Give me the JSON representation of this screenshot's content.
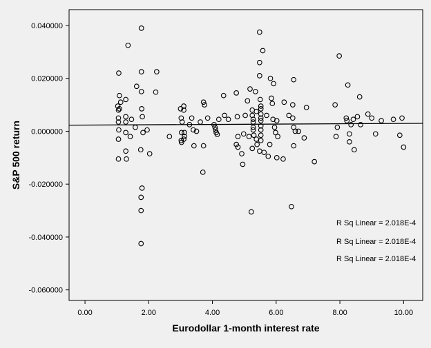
{
  "chart_data": {
    "type": "scatter",
    "title": "",
    "xlabel": "Eurodollar 1-month interest rate",
    "ylabel": "S&P 500 return",
    "xlim": [
      -0.5,
      10.6
    ],
    "ylim": [
      -0.064,
      0.046
    ],
    "x_ticks": [
      0,
      2,
      4,
      6,
      8,
      10
    ],
    "x_tick_labels": [
      "0.00",
      "2.00",
      "4.00",
      "6.00",
      "8.00",
      "10.00"
    ],
    "y_ticks": [
      0.04,
      0.02,
      0.0,
      -0.02,
      -0.04,
      -0.06
    ],
    "y_tick_labels": [
      "0.040000",
      "0.020000",
      "0.000000",
      "-0.020000",
      "-0.040000",
      "-0.060000"
    ],
    "grid": false,
    "plot_background": "#f0f0f0",
    "marker": "open-circle",
    "fit_line": {
      "type": "linear",
      "x": [
        -0.5,
        10.6
      ],
      "y": [
        0.0023,
        0.003
      ]
    },
    "annotations": [
      "R Sq Linear = 2.018E-4",
      "R Sq Linear = 2.018E-4",
      "R Sq Linear = 2.018E-4"
    ],
    "series": [
      {
        "points": [
          [
            1.03,
            0.0095
          ],
          [
            1.05,
            0.008
          ],
          [
            1.05,
            0.005
          ],
          [
            1.05,
            0.0035
          ],
          [
            1.06,
            0.0005
          ],
          [
            1.05,
            -0.003
          ],
          [
            1.05,
            -0.0105
          ],
          [
            1.06,
            0.022
          ],
          [
            1.08,
            0.0135
          ],
          [
            1.12,
            0.011
          ],
          [
            1.08,
            0.0085
          ],
          [
            1.28,
            0.012
          ],
          [
            1.28,
            0.0055
          ],
          [
            1.28,
            0.0035
          ],
          [
            1.28,
            -0.0005
          ],
          [
            1.28,
            -0.0075
          ],
          [
            1.3,
            -0.0105
          ],
          [
            1.35,
            0.0325
          ],
          [
            1.42,
            -0.002
          ],
          [
            1.46,
            0.0045
          ],
          [
            1.58,
            0.0015
          ],
          [
            1.62,
            0.017
          ],
          [
            1.77,
            0.039
          ],
          [
            1.77,
            0.0225
          ],
          [
            1.77,
            0.015
          ],
          [
            1.78,
            0.0085
          ],
          [
            1.8,
            0.0055
          ],
          [
            1.82,
            -0.0005
          ],
          [
            1.75,
            -0.007
          ],
          [
            1.79,
            -0.0215
          ],
          [
            1.76,
            -0.025
          ],
          [
            1.76,
            -0.03
          ],
          [
            1.76,
            -0.0425
          ],
          [
            1.95,
            0.0005
          ],
          [
            2.03,
            -0.0085
          ],
          [
            2.25,
            0.0225
          ],
          [
            2.22,
            0.0148
          ],
          [
            2.65,
            -0.002
          ],
          [
            3.0,
            0.0085
          ],
          [
            3.02,
            0.005
          ],
          [
            3.05,
            0.0035
          ],
          [
            3.03,
            -0.0005
          ],
          [
            3.02,
            -0.0035
          ],
          [
            3.03,
            -0.0042
          ],
          [
            3.1,
            0.0095
          ],
          [
            3.1,
            0.008
          ],
          [
            3.12,
            -0.0005
          ],
          [
            3.12,
            -0.002
          ],
          [
            3.1,
            -0.003
          ],
          [
            3.28,
            0.0025
          ],
          [
            3.35,
            0.005
          ],
          [
            3.4,
            0.0005
          ],
          [
            3.42,
            -0.0055
          ],
          [
            3.5,
            0.0
          ],
          [
            3.62,
            0.0035
          ],
          [
            3.72,
            0.011
          ],
          [
            3.75,
            0.01
          ],
          [
            3.72,
            -0.0055
          ],
          [
            3.7,
            -0.0155
          ],
          [
            3.85,
            0.005
          ],
          [
            4.05,
            0.0025
          ],
          [
            4.08,
            0.0015
          ],
          [
            4.1,
            0.0005
          ],
          [
            4.12,
            -0.0005
          ],
          [
            4.15,
            -0.0012
          ],
          [
            4.2,
            0.0045
          ],
          [
            4.35,
            0.0135
          ],
          [
            4.38,
            0.006
          ],
          [
            4.5,
            0.0045
          ],
          [
            4.75,
            0.0145
          ],
          [
            4.78,
            0.0055
          ],
          [
            4.8,
            -0.002
          ],
          [
            4.75,
            -0.005
          ],
          [
            4.8,
            -0.006
          ],
          [
            4.92,
            -0.0085
          ],
          [
            4.95,
            -0.0125
          ],
          [
            4.98,
            -0.001
          ],
          [
            5.03,
            0.006
          ],
          [
            5.1,
            0.0115
          ],
          [
            5.15,
            -0.002
          ],
          [
            5.18,
            0.016
          ],
          [
            5.25,
            0.008
          ],
          [
            5.25,
            0.006
          ],
          [
            5.28,
            0.0045
          ],
          [
            5.28,
            0.0035
          ],
          [
            5.28,
            0.0015
          ],
          [
            5.28,
            0.0005
          ],
          [
            5.3,
            -0.0015
          ],
          [
            5.25,
            -0.0065
          ],
          [
            5.22,
            -0.0305
          ],
          [
            5.35,
            0.015
          ],
          [
            5.38,
            0.0075
          ],
          [
            5.38,
            -0.003
          ],
          [
            5.4,
            -0.005
          ],
          [
            5.48,
            0.0375
          ],
          [
            5.48,
            0.026
          ],
          [
            5.48,
            0.021
          ],
          [
            5.5,
            0.012
          ],
          [
            5.52,
            0.0095
          ],
          [
            5.52,
            0.0085
          ],
          [
            5.52,
            0.0065
          ],
          [
            5.52,
            0.005
          ],
          [
            5.52,
            0.004
          ],
          [
            5.52,
            0.002
          ],
          [
            5.52,
            0.0005
          ],
          [
            5.52,
            -0.0015
          ],
          [
            5.52,
            -0.0035
          ],
          [
            5.48,
            -0.0075
          ],
          [
            5.58,
            0.0305
          ],
          [
            5.62,
            -0.008
          ],
          [
            5.7,
            0.006
          ],
          [
            5.75,
            -0.0095
          ],
          [
            5.8,
            -0.005
          ],
          [
            5.82,
            0.02
          ],
          [
            5.85,
            0.0125
          ],
          [
            5.88,
            0.0105
          ],
          [
            5.92,
            0.018
          ],
          [
            5.9,
            0.0045
          ],
          [
            5.95,
            0.0015
          ],
          [
            5.98,
            -0.0005
          ],
          [
            6.02,
            -0.01
          ],
          [
            6.02,
            0.004
          ],
          [
            6.05,
            -0.002
          ],
          [
            6.25,
            0.011
          ],
          [
            6.22,
            -0.0105
          ],
          [
            6.4,
            0.006
          ],
          [
            6.48,
            -0.0285
          ],
          [
            6.55,
            0.0195
          ],
          [
            6.52,
            0.01
          ],
          [
            6.52,
            0.005
          ],
          [
            6.55,
            0.0015
          ],
          [
            6.6,
            0.0
          ],
          [
            6.55,
            -0.0055
          ],
          [
            6.7,
            0.0
          ],
          [
            6.88,
            -0.0025
          ],
          [
            6.95,
            0.009
          ],
          [
            7.2,
            -0.0115
          ],
          [
            7.85,
            0.01
          ],
          [
            7.88,
            -0.002
          ],
          [
            7.92,
            0.0015
          ],
          [
            7.98,
            0.0285
          ],
          [
            8.2,
            0.005
          ],
          [
            8.22,
            0.004
          ],
          [
            8.25,
            0.0175
          ],
          [
            8.3,
            -0.001
          ],
          [
            8.3,
            -0.004
          ],
          [
            8.35,
            0.0025
          ],
          [
            8.42,
            0.0045
          ],
          [
            8.45,
            -0.007
          ],
          [
            8.55,
            0.0055
          ],
          [
            8.62,
            0.013
          ],
          [
            8.65,
            0.0025
          ],
          [
            8.88,
            0.0065
          ],
          [
            9.0,
            0.005
          ],
          [
            9.12,
            -0.001
          ],
          [
            9.3,
            0.004
          ],
          [
            9.68,
            0.0045
          ],
          [
            9.88,
            -0.0015
          ],
          [
            9.95,
            0.005
          ],
          [
            10.0,
            -0.006
          ]
        ]
      }
    ]
  }
}
